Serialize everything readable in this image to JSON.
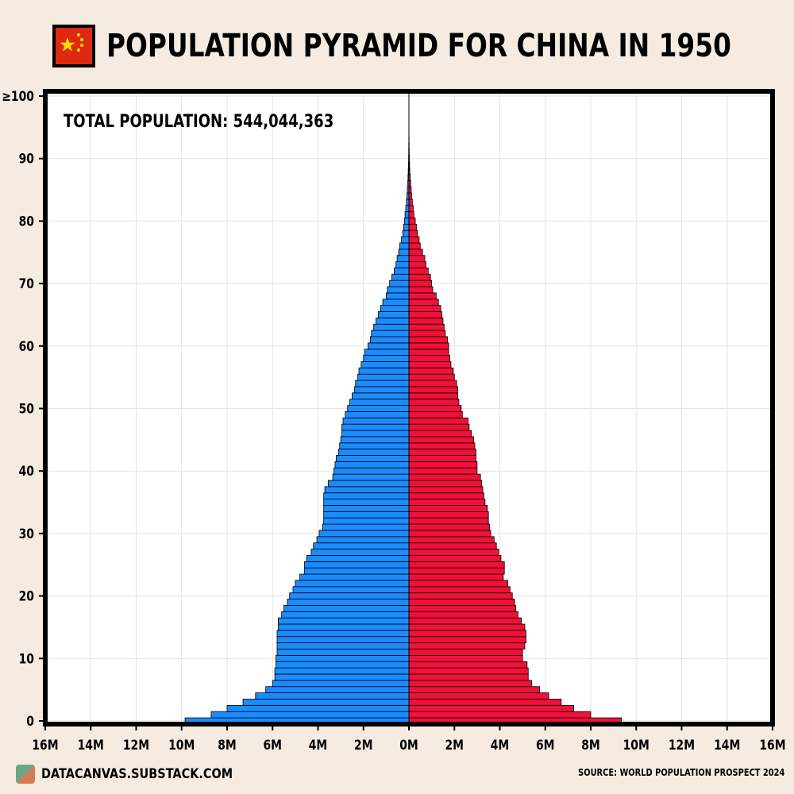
{
  "header": {
    "title": "POPULATION PYRAMID FOR CHINA IN 1950",
    "flag_icon": "china-flag-icon"
  },
  "footer": {
    "site": "DATACANVAS.SUBSTACK.COM",
    "source": "SOURCE: WORLD POPULATION PROSPECT 2024"
  },
  "chart_data": {
    "type": "bar",
    "orientation": "horizontal-pyramid",
    "annotation": "TOTAL POPULATION: 544,044,363",
    "colors": {
      "male": "#1a8cff",
      "female": "#f0103a",
      "background": "#f5ebe0",
      "grid": "#e8e2da"
    },
    "x_ticks": [
      "16M",
      "14M",
      "12M",
      "10M",
      "8M",
      "6M",
      "4M",
      "2M",
      "0M",
      "2M",
      "4M",
      "6M",
      "8M",
      "10M",
      "12M",
      "14M",
      "16M"
    ],
    "xlim": [
      -16,
      16
    ],
    "x_units": "millions",
    "y_ticks": [
      "0",
      "10",
      "20",
      "30",
      "40",
      "50",
      "60",
      "70",
      "80",
      "90",
      "≥100"
    ],
    "ylim": [
      0,
      100
    ],
    "grid": true,
    "ages": [
      0,
      1,
      2,
      3,
      4,
      5,
      6,
      7,
      8,
      9,
      10,
      11,
      12,
      13,
      14,
      15,
      16,
      17,
      18,
      19,
      20,
      21,
      22,
      23,
      24,
      25,
      26,
      27,
      28,
      29,
      30,
      31,
      32,
      33,
      34,
      35,
      36,
      37,
      38,
      39,
      40,
      41,
      42,
      43,
      44,
      45,
      46,
      47,
      48,
      49,
      50,
      51,
      52,
      53,
      54,
      55,
      56,
      57,
      58,
      59,
      60,
      61,
      62,
      63,
      64,
      65,
      66,
      67,
      68,
      69,
      70,
      71,
      72,
      73,
      74,
      75,
      76,
      77,
      78,
      79,
      80,
      81,
      82,
      83,
      84,
      85,
      86,
      87,
      88,
      89,
      90,
      91,
      92,
      93,
      94,
      95,
      96,
      97,
      98,
      99,
      100
    ],
    "series": [
      {
        "side": "left",
        "values": [
          9.85,
          8.7,
          8.0,
          7.3,
          6.75,
          6.3,
          6.0,
          5.9,
          5.9,
          5.85,
          5.85,
          5.8,
          5.8,
          5.8,
          5.8,
          5.75,
          5.75,
          5.6,
          5.5,
          5.35,
          5.25,
          5.1,
          5.0,
          4.8,
          4.6,
          4.6,
          4.5,
          4.3,
          4.2,
          4.05,
          3.95,
          3.8,
          3.75,
          3.75,
          3.75,
          3.75,
          3.75,
          3.7,
          3.55,
          3.35,
          3.3,
          3.25,
          3.2,
          3.1,
          3.05,
          3.0,
          2.95,
          2.95,
          2.9,
          2.8,
          2.7,
          2.6,
          2.5,
          2.4,
          2.35,
          2.25,
          2.2,
          2.1,
          2.0,
          1.95,
          1.8,
          1.7,
          1.65,
          1.55,
          1.45,
          1.35,
          1.25,
          1.15,
          1.0,
          0.95,
          0.85,
          0.75,
          0.65,
          0.57,
          0.52,
          0.45,
          0.4,
          0.33,
          0.27,
          0.23,
          0.2,
          0.17,
          0.14,
          0.11,
          0.09,
          0.07,
          0.05,
          0.04,
          0.03,
          0.02,
          0.015,
          0.01,
          0.008,
          0.005,
          0.003,
          0.002,
          0.001,
          0.001,
          0.0,
          0.0,
          0.0
        ]
      },
      {
        "side": "right",
        "values": [
          9.35,
          8.0,
          7.25,
          6.7,
          6.15,
          5.75,
          5.4,
          5.25,
          5.25,
          5.2,
          5.0,
          5.0,
          5.1,
          5.15,
          5.15,
          5.1,
          4.95,
          4.8,
          4.7,
          4.65,
          4.55,
          4.45,
          4.35,
          4.15,
          4.2,
          4.2,
          4.05,
          3.95,
          3.85,
          3.75,
          3.6,
          3.55,
          3.5,
          3.5,
          3.45,
          3.35,
          3.3,
          3.25,
          3.2,
          3.15,
          3.0,
          3.0,
          2.95,
          2.95,
          2.9,
          2.85,
          2.75,
          2.65,
          2.6,
          2.35,
          2.3,
          2.2,
          2.15,
          2.15,
          2.1,
          2.0,
          1.95,
          1.85,
          1.8,
          1.75,
          1.75,
          1.7,
          1.6,
          1.55,
          1.5,
          1.45,
          1.4,
          1.3,
          1.2,
          1.05,
          1.0,
          0.95,
          0.85,
          0.75,
          0.7,
          0.6,
          0.5,
          0.45,
          0.38,
          0.33,
          0.28,
          0.22,
          0.19,
          0.15,
          0.12,
          0.1,
          0.08,
          0.06,
          0.04,
          0.03,
          0.02,
          0.015,
          0.01,
          0.007,
          0.005,
          0.003,
          0.002,
          0.001,
          0.0,
          0.0,
          0.0
        ]
      }
    ]
  }
}
